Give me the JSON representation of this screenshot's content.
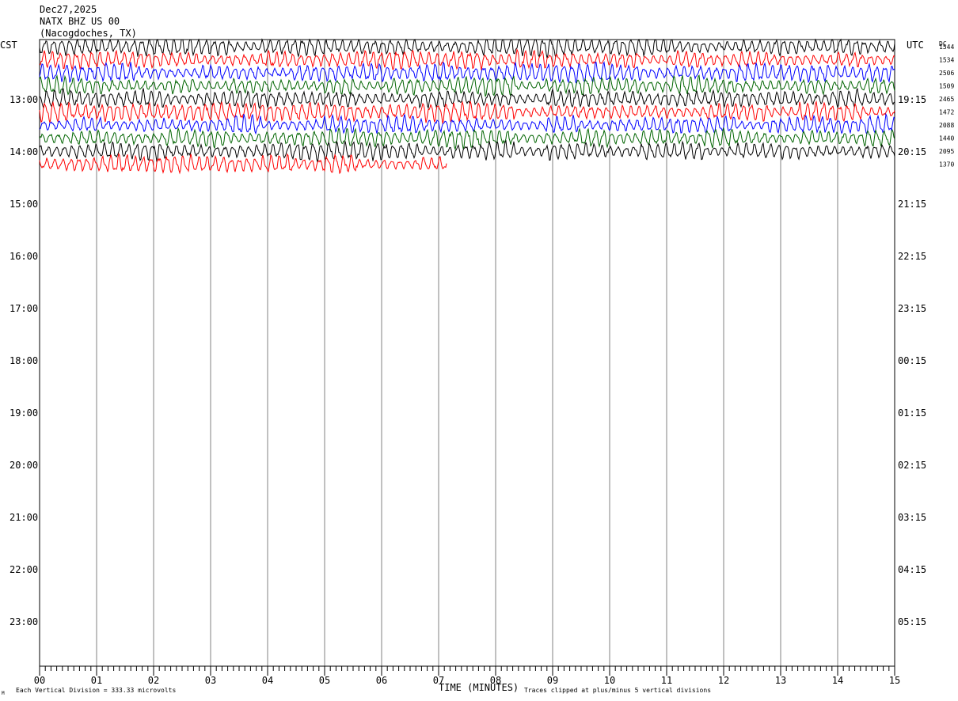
{
  "header": {
    "date": "Dec27,2025",
    "station": "NATX BHZ US 00",
    "location": "(Nacogdoches, TX)"
  },
  "left_tz": "CST",
  "right_tz": "UTC",
  "dc_label": "DC",
  "footer": {
    "x_axis_title": "TIME (MINUTES)",
    "scale_note": "Each Vertical Division =  333.33 microvolts",
    "clip_note": "Traces clipped at plus/minus 5 vertical divisions",
    "corner_mark": "M"
  },
  "chart_data": {
    "type": "line",
    "title": "",
    "xlabel": "TIME (MINUTES)",
    "xlim": [
      0,
      15
    ],
    "x_ticks": [
      "00",
      "01",
      "02",
      "03",
      "04",
      "05",
      "06",
      "07",
      "08",
      "09",
      "10",
      "11",
      "12",
      "13",
      "14",
      "15"
    ],
    "rows_left": [
      {
        "label": "13:00"
      },
      {
        "label": "14:00"
      },
      {
        "label": "15:00"
      },
      {
        "label": "16:00"
      },
      {
        "label": "17:00"
      },
      {
        "label": "18:00"
      },
      {
        "label": "19:00"
      },
      {
        "label": "20:00"
      },
      {
        "label": "21:00"
      },
      {
        "label": "22:00"
      },
      {
        "label": "23:00"
      }
    ],
    "rows_right": [
      {
        "label": "19:15"
      },
      {
        "label": "20:15"
      },
      {
        "label": "21:15"
      },
      {
        "label": "22:15"
      },
      {
        "label": "23:15"
      },
      {
        "label": "00:15"
      },
      {
        "label": "01:15"
      },
      {
        "label": "02:15"
      },
      {
        "label": "03:15"
      },
      {
        "label": "04:15"
      },
      {
        "label": "05:15"
      }
    ],
    "colors": [
      "#000000",
      "#ff0000",
      "#0000ff",
      "#006400"
    ],
    "series": [
      {
        "dc": "1544",
        "color": "#000000",
        "end_minute": 15,
        "amplitude": 0.6
      },
      {
        "dc": "1534",
        "color": "#ff0000",
        "end_minute": 15,
        "amplitude": 0.6
      },
      {
        "dc": "2506",
        "color": "#0000ff",
        "end_minute": 15,
        "amplitude": 0.6
      },
      {
        "dc": "1509",
        "color": "#006400",
        "end_minute": 15,
        "amplitude": 0.6
      },
      {
        "dc": "2465",
        "color": "#000000",
        "end_minute": 15,
        "amplitude": 0.6
      },
      {
        "dc": "1472",
        "color": "#ff0000",
        "end_minute": 15,
        "amplitude": 0.6
      },
      {
        "dc": "2088",
        "color": "#0000ff",
        "end_minute": 15,
        "amplitude": 0.6
      },
      {
        "dc": "1440",
        "color": "#006400",
        "end_minute": 15,
        "amplitude": 0.6
      },
      {
        "dc": "2095",
        "color": "#000000",
        "end_minute": 15,
        "amplitude": 0.6
      },
      {
        "dc": "1370",
        "color": "#ff0000",
        "end_minute": 7.15,
        "amplitude": 0.6
      }
    ]
  }
}
